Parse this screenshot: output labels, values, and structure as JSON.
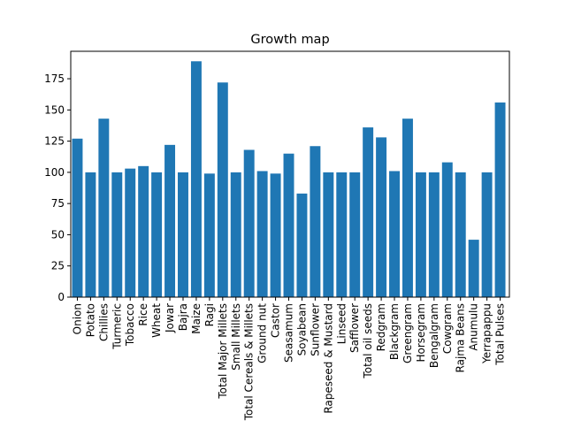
{
  "chart_data": {
    "type": "bar",
    "title": "Growth map",
    "xlabel": "",
    "ylabel": "",
    "ylim": [
      0,
      197
    ],
    "yticks": [
      0,
      25,
      50,
      75,
      100,
      125,
      150,
      175
    ],
    "grid": false,
    "bar_color": "#1f77b4",
    "categories": [
      "Onion",
      "Potato",
      "Chillies",
      "Turmeric",
      "Tobacco",
      "Rice",
      "Wheat",
      "Jowar",
      "Bajra",
      "Maize",
      "Ragi",
      "Total Major Millets",
      "Small Millets",
      "Total Cereals & Millets",
      "Ground nut",
      "Castor",
      "Seasamum",
      "Soyabean",
      "Sunflower",
      "Rapeseed & Mustard",
      "Linseed",
      "Safflower",
      "Total oil seeds",
      "Redgram",
      "Blackgram",
      "Greengram",
      "Horsegram",
      "Bengalgram",
      "Cowgram",
      "Rajma Beans",
      "Anumulu",
      "Yerrapappu",
      "Total Pulses"
    ],
    "values": [
      127,
      100,
      143,
      100,
      103,
      105,
      100,
      122,
      100,
      189,
      99,
      172,
      100,
      118,
      101,
      99,
      115,
      83,
      121,
      100,
      100,
      100,
      136,
      128,
      101,
      143,
      100,
      100,
      108,
      100,
      46,
      100,
      156
    ]
  }
}
